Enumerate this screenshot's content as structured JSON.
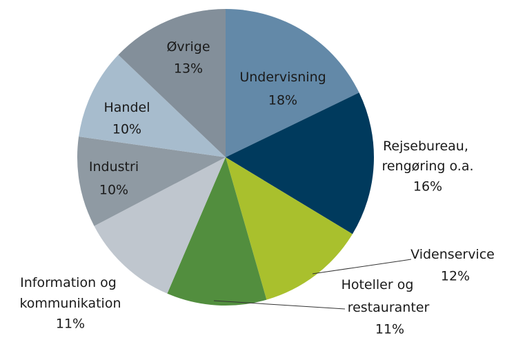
{
  "chart_data": {
    "type": "pie",
    "categories": [
      "Undervisning",
      "Rejsebureau, rengøring o.a.",
      "Videnservice",
      "Hoteller og restauranter",
      "Information og kommunikation",
      "Industri",
      "Handel",
      "Øvrige"
    ],
    "values": [
      18,
      16,
      12,
      11,
      11,
      10,
      10,
      13
    ],
    "value_labels": [
      "18%",
      "16%",
      "12%",
      "11%",
      "11%",
      "10%",
      "10%",
      "13%"
    ],
    "colors": [
      "#6389a8",
      "#003a5d",
      "#a9c02d",
      "#528e3e",
      "#bfc6ce",
      "#8f9aa3",
      "#a7bccd",
      "#838f9a"
    ]
  }
}
